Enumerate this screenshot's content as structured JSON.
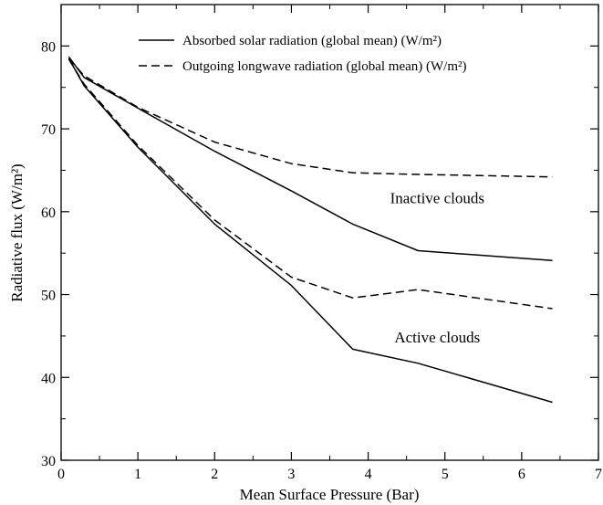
{
  "chart_data": {
    "type": "line",
    "xlabel": "Mean Surface Pressure (Bar)",
    "ylabel": "Radiative flux (W/m²)",
    "xlim": [
      0,
      7
    ],
    "ylim": [
      30,
      85
    ],
    "xticks": [
      0,
      1,
      2,
      3,
      4,
      5,
      6,
      7
    ],
    "yticks": [
      30,
      40,
      50,
      60,
      70,
      80
    ],
    "grid": false,
    "legend_position": "top-right",
    "legend": [
      {
        "label": "Absorbed solar radiation (global mean) (W/m²)",
        "style": "solid"
      },
      {
        "label": "Outgoing longwave radiation (global mean) (W/m²)",
        "style": "dashed"
      }
    ],
    "annotations": [
      {
        "text": "Inactive clouds",
        "x": 4.9,
        "y": 61
      },
      {
        "text": "Active clouds",
        "x": 4.9,
        "y": 44.2
      }
    ],
    "series": [
      {
        "style": "solid",
        "group": "inactive",
        "x": [
          0.1,
          0.3,
          1.0,
          2.0,
          3.0,
          3.8,
          4.65,
          6.4
        ],
        "y": [
          78.7,
          76.2,
          72.5,
          67.3,
          62.5,
          58.5,
          55.3,
          54.1
        ]
      },
      {
        "style": "dashed",
        "group": "inactive",
        "x": [
          0.1,
          0.3,
          1.0,
          2.0,
          3.0,
          3.8,
          4.65,
          6.4
        ],
        "y": [
          78.5,
          76.4,
          72.6,
          68.4,
          65.8,
          64.7,
          64.5,
          64.2
        ]
      },
      {
        "style": "solid",
        "group": "active",
        "x": [
          0.1,
          0.3,
          1.0,
          2.0,
          3.0,
          3.8,
          4.65,
          6.4
        ],
        "y": [
          78.5,
          75.2,
          67.8,
          58.5,
          51.1,
          43.4,
          41.7,
          37.0
        ]
      },
      {
        "style": "dashed",
        "group": "active",
        "x": [
          0.1,
          0.3,
          1.0,
          2.0,
          3.0,
          3.8,
          4.65,
          6.4
        ],
        "y": [
          78.4,
          75.4,
          68.0,
          59.0,
          52.1,
          49.6,
          50.6,
          48.3
        ]
      }
    ]
  }
}
